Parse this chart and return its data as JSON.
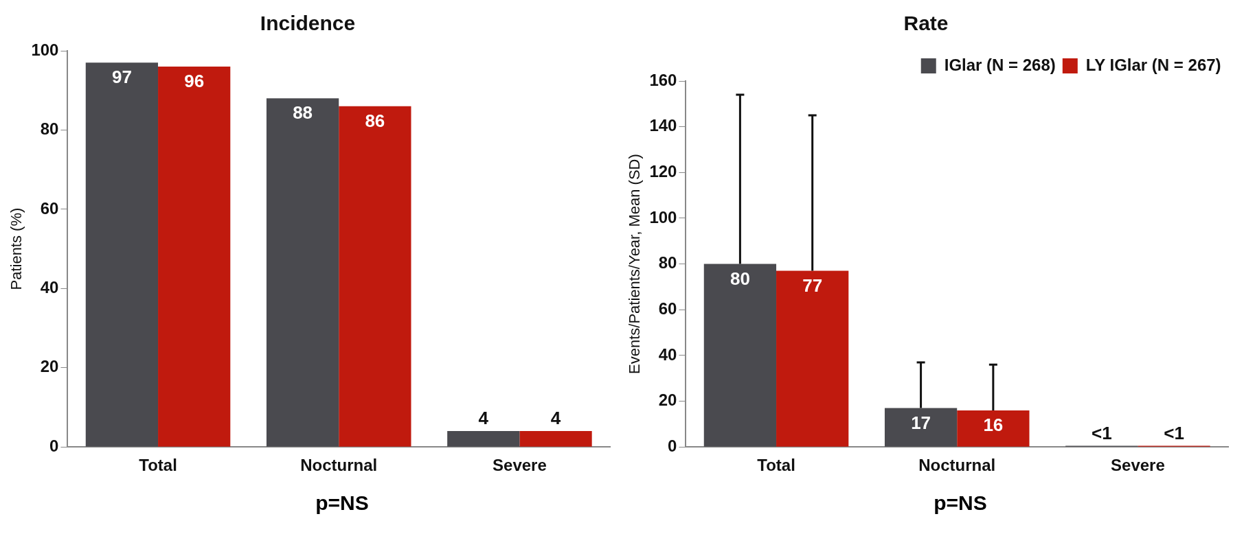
{
  "chart_data": [
    {
      "type": "bar",
      "title": "Incidence",
      "ylabel": "Patients (%)",
      "categories": [
        "Total",
        "Nocturnal",
        "Severe"
      ],
      "series": [
        {
          "color": "#4a4a4f",
          "values": [
            97,
            88,
            4
          ]
        },
        {
          "color": "#c01a0e",
          "values": [
            96,
            86,
            4
          ]
        }
      ],
      "ylim": [
        0,
        100
      ],
      "yticks": [
        0,
        20,
        40,
        60,
        80,
        100
      ],
      "grid": false,
      "legend": false,
      "data_labels": true,
      "annotations": [
        "p=NS"
      ]
    },
    {
      "type": "bar",
      "title": "Rate",
      "ylabel": "Events/Patients/Year, Mean (SD)",
      "categories": [
        "Total",
        "Nocturnal",
        "Severe"
      ],
      "series": [
        {
          "name": "IGlar (N = 268)",
          "color": "#4a4a4f",
          "values": [
            80,
            17,
            0.5
          ],
          "value_labels": [
            "80",
            "17",
            "<1"
          ],
          "errors": [
            [
              80,
              154
            ],
            [
              17,
              37
            ],
            null
          ]
        },
        {
          "name": "LY IGlar (N = 267)",
          "color": "#c01a0e",
          "values": [
            77,
            16,
            0.5
          ],
          "value_labels": [
            "77",
            "16",
            "<1"
          ],
          "errors": [
            [
              77,
              145
            ],
            [
              16,
              36
            ],
            null
          ]
        }
      ],
      "ylim": [
        0,
        160
      ],
      "yticks": [
        0,
        20,
        40,
        60,
        80,
        100,
        120,
        140,
        160
      ],
      "grid": false,
      "legend": "top right",
      "annotations": [
        "p=NS"
      ]
    }
  ]
}
